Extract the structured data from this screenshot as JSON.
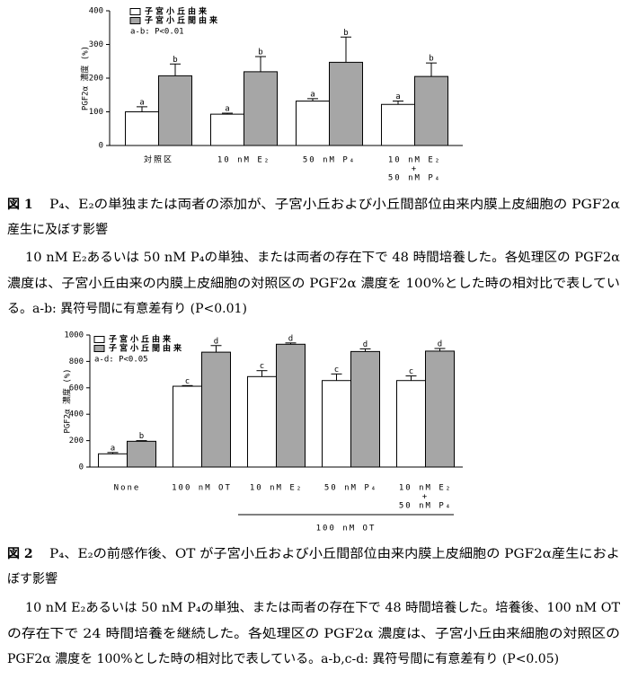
{
  "chart_data": [
    {
      "type": "bar",
      "ylabel": "PGF2α 濃度 (%)",
      "categories": [
        "対照区",
        "10 nM E₂",
        "50 nM P₄",
        [
          "10 nM E₂",
          "+",
          "50 nM P₄"
        ]
      ],
      "series": [
        {
          "name": "子宮小丘由来",
          "color": "#ffffff",
          "values": [
            100,
            93,
            132,
            122
          ],
          "errors": [
            15,
            3,
            7,
            10
          ],
          "letters": [
            "a",
            "a",
            "a",
            "a"
          ]
        },
        {
          "name": "子宮小丘間由来",
          "color": "#a6a6a6",
          "values": [
            207,
            219,
            247,
            205
          ],
          "errors": [
            35,
            45,
            75,
            40
          ],
          "letters": [
            "b",
            "b",
            "b",
            "b"
          ]
        }
      ],
      "note": "a-b: P<0.01",
      "ylim": [
        0,
        400
      ],
      "yticks": [
        0,
        100,
        200,
        300,
        400
      ]
    },
    {
      "type": "bar",
      "ylabel": "PGF2α 濃度 (%)",
      "categories": [
        "None",
        "100 nM OT",
        "10 nM E₂",
        "50 nM P₄",
        [
          "10 nM E₂",
          "+",
          "50 nM P₄"
        ]
      ],
      "series": [
        {
          "name": "子宮小丘由来",
          "color": "#ffffff",
          "values": [
            100,
            612,
            685,
            655,
            655
          ],
          "errors": [
            10,
            5,
            45,
            50,
            35
          ],
          "letters": [
            "a",
            "c",
            "c",
            "c",
            "c"
          ]
        },
        {
          "name": "子宮小丘間由来",
          "color": "#a6a6a6",
          "values": [
            195,
            870,
            930,
            875,
            878
          ],
          "errors": [
            5,
            50,
            10,
            20,
            20
          ],
          "letters": [
            "b",
            "d",
            "d",
            "d",
            "d"
          ]
        }
      ],
      "note": "a-d: P<0.05",
      "bracket_label": "100 nM OT",
      "ylim": [
        0,
        1000
      ],
      "yticks": [
        0,
        200,
        400,
        600,
        800,
        1000
      ]
    }
  ],
  "captions": [
    {
      "label": "図 1",
      "title": [
        "P₄、E₂の単独または両者の添加が、子宮小丘および小丘間部位由来内膜上皮細胞の PGF2α",
        "産生に及ぼす影響"
      ],
      "body": [
        "10 nM E₂あるいは 50 nM P₄の単独、または両者の存在下で 48 時間培養した。各処理区の PGF2α",
        "濃度は、子宮小丘由来の内膜上皮細胞の対照区の PGF2α 濃度を 100%とした時の相対比で表してい",
        "る。a-b: 異符号間に有意差有り (P<0.01)"
      ]
    },
    {
      "label": "図 2",
      "title": [
        "P₄、E₂の前感作後、OT が子宮小丘および小丘間部位由来内膜上皮細胞の PGF2α産生におよ",
        "ぼす影響"
      ],
      "body": [
        "10 nM E₂あるいは 50 nM P₄の単独、または両者の存在下で 48 時間培養した。培養後、100 nM OT",
        "の存在下で 24 時間培養を継続した。各処理区の PGF2α 濃度は、子宮小丘由来細胞の対照区の",
        "PGF2α 濃度を 100%とした時の相対比で表している。a-b,c-d: 異符号間に有意差有り (P<0.05)"
      ]
    }
  ]
}
